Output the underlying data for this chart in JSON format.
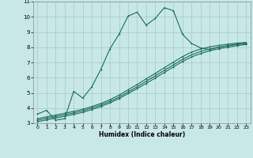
{
  "xlabel": "Humidex (Indice chaleur)",
  "xlim": [
    -0.5,
    23.5
  ],
  "ylim": [
    3,
    11
  ],
  "xticks": [
    0,
    1,
    2,
    3,
    4,
    5,
    6,
    7,
    8,
    9,
    10,
    11,
    12,
    13,
    14,
    15,
    16,
    17,
    18,
    19,
    20,
    21,
    22,
    23
  ],
  "yticks": [
    3,
    4,
    5,
    6,
    7,
    8,
    9,
    10,
    11
  ],
  "bg_color": "#c8e8e8",
  "line_color": "#1a6b5a",
  "grid_color": "#a8c8c8",
  "line1_x": [
    0,
    1,
    2,
    3,
    4,
    5,
    6,
    7,
    8,
    9,
    10,
    11,
    12,
    13,
    14,
    15,
    16,
    17,
    18,
    19,
    20,
    21,
    22,
    23
  ],
  "line1_y": [
    3.6,
    3.85,
    3.2,
    3.3,
    5.1,
    4.65,
    5.4,
    6.55,
    7.9,
    8.85,
    10.05,
    10.3,
    9.45,
    9.9,
    10.6,
    10.4,
    8.85,
    8.25,
    7.95,
    7.85,
    8.0,
    8.1,
    8.2,
    8.25
  ],
  "line2_x": [
    0,
    1,
    2,
    3,
    4,
    5,
    6,
    7,
    8,
    9,
    10,
    11,
    12,
    13,
    14,
    15,
    16,
    17,
    18,
    19,
    20,
    21,
    22,
    23
  ],
  "line2_y": [
    3.3,
    3.42,
    3.54,
    3.66,
    3.78,
    3.92,
    4.1,
    4.3,
    4.55,
    4.85,
    5.2,
    5.55,
    5.92,
    6.28,
    6.65,
    7.02,
    7.38,
    7.68,
    7.88,
    8.02,
    8.12,
    8.2,
    8.27,
    8.32
  ],
  "line3_x": [
    0,
    1,
    2,
    3,
    4,
    5,
    6,
    7,
    8,
    9,
    10,
    11,
    12,
    13,
    14,
    15,
    16,
    17,
    18,
    19,
    20,
    21,
    22,
    23
  ],
  "line3_y": [
    3.2,
    3.32,
    3.44,
    3.56,
    3.68,
    3.82,
    4.0,
    4.2,
    4.44,
    4.72,
    5.06,
    5.4,
    5.76,
    6.12,
    6.48,
    6.84,
    7.2,
    7.5,
    7.72,
    7.88,
    8.0,
    8.1,
    8.18,
    8.25
  ],
  "line4_x": [
    0,
    1,
    2,
    3,
    4,
    5,
    6,
    7,
    8,
    9,
    10,
    11,
    12,
    13,
    14,
    15,
    16,
    17,
    18,
    19,
    20,
    21,
    22,
    23
  ],
  "line4_y": [
    3.1,
    3.22,
    3.34,
    3.46,
    3.58,
    3.72,
    3.9,
    4.1,
    4.34,
    4.62,
    4.95,
    5.28,
    5.62,
    5.98,
    6.34,
    6.7,
    7.06,
    7.36,
    7.58,
    7.76,
    7.9,
    8.0,
    8.1,
    8.18
  ]
}
